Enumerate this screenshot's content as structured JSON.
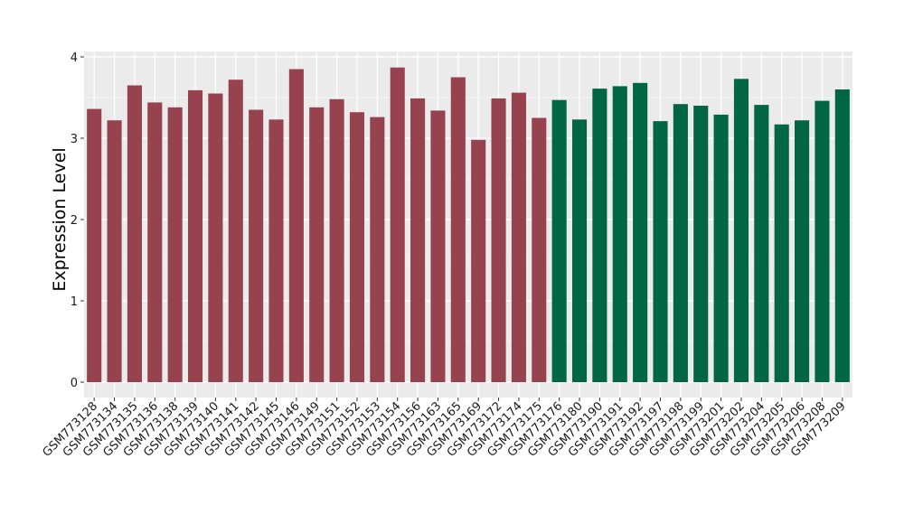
{
  "chart_data": {
    "type": "bar",
    "title": "",
    "xlabel": "",
    "ylabel": "Expression Level",
    "ylim": [
      -0.15,
      4.05
    ],
    "yticks": [
      0,
      1,
      2,
      3,
      4
    ],
    "grid": true,
    "legend": "none",
    "colors": {
      "group1": "#96434f",
      "group2": "#006643",
      "panel_bg": "#ebebeb",
      "grid": "#ffffff"
    },
    "categories": [
      "GSM773128",
      "GSM773134",
      "GSM773135",
      "GSM773136",
      "GSM773138",
      "GSM773139",
      "GSM773140",
      "GSM773141",
      "GSM773142",
      "GSM773145",
      "GSM773146",
      "GSM773149",
      "GSM773151",
      "GSM773152",
      "GSM773153",
      "GSM773154",
      "GSM773156",
      "GSM773163",
      "GSM773165",
      "GSM773169",
      "GSM773172",
      "GSM773174",
      "GSM773175",
      "GSM773176",
      "GSM773180",
      "GSM773190",
      "GSM773191",
      "GSM773192",
      "GSM773197",
      "GSM773198",
      "GSM773199",
      "GSM773201",
      "GSM773202",
      "GSM773204",
      "GSM773205",
      "GSM773206",
      "GSM773208",
      "GSM773209"
    ],
    "values": [
      3.36,
      3.22,
      3.65,
      3.44,
      3.38,
      3.59,
      3.55,
      3.72,
      3.35,
      3.23,
      3.85,
      3.38,
      3.48,
      3.32,
      3.26,
      3.87,
      3.49,
      3.34,
      3.75,
      2.98,
      3.49,
      3.56,
      3.25,
      3.47,
      3.23,
      3.61,
      3.64,
      3.68,
      3.21,
      3.42,
      3.4,
      3.29,
      3.73,
      3.41,
      3.17,
      3.22,
      3.46,
      3.6
    ],
    "groups": [
      1,
      1,
      1,
      1,
      1,
      1,
      1,
      1,
      1,
      1,
      1,
      1,
      1,
      1,
      1,
      1,
      1,
      1,
      1,
      1,
      1,
      1,
      1,
      2,
      2,
      2,
      2,
      2,
      2,
      2,
      2,
      2,
      2,
      2,
      2,
      2,
      2,
      2
    ]
  }
}
